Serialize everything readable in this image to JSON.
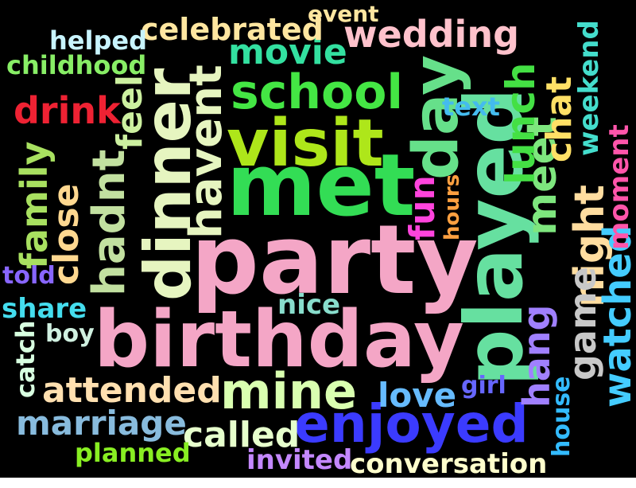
{
  "words": [
    {
      "text": "party",
      "color": "#f4a6c6",
      "rotated": false
    },
    {
      "text": "birthday",
      "color": "#f4a6c6",
      "rotated": false
    },
    {
      "text": "met",
      "color": "#33dd55",
      "rotated": false
    },
    {
      "text": "visit",
      "color": "#aee61a",
      "rotated": false
    },
    {
      "text": "played",
      "color": "#66e0a0",
      "rotated": true
    },
    {
      "text": "dinner",
      "color": "#e6f5c0",
      "rotated": true
    },
    {
      "text": "day",
      "color": "#66e08a",
      "rotated": true
    },
    {
      "text": "school",
      "color": "#44e644",
      "rotated": false
    },
    {
      "text": "enjoyed",
      "color": "#3b3bff",
      "rotated": false
    },
    {
      "text": "mine",
      "color": "#d9ffb0",
      "rotated": false
    },
    {
      "text": "havent",
      "color": "#e6f5c0",
      "rotated": true
    },
    {
      "text": "hadnt",
      "color": "#c2e0a0",
      "rotated": true
    },
    {
      "text": "meet",
      "color": "#7ee67e",
      "rotated": true
    },
    {
      "text": "night",
      "color": "#ffdda0",
      "rotated": true
    },
    {
      "text": "lunch",
      "color": "#44e044",
      "rotated": true
    },
    {
      "text": "wedding",
      "color": "#ffc2cc",
      "rotated": false
    },
    {
      "text": "movie",
      "color": "#33e0a0",
      "rotated": false
    },
    {
      "text": "celebrated",
      "color": "#ffe6a0",
      "rotated": false
    },
    {
      "text": "attended",
      "color": "#ffe0b0",
      "rotated": false
    },
    {
      "text": "marriage",
      "color": "#88bbdd",
      "rotated": false
    },
    {
      "text": "called",
      "color": "#e6ffcc",
      "rotated": false
    },
    {
      "text": "love",
      "color": "#66bbff",
      "rotated": false
    },
    {
      "text": "watched",
      "color": "#44ccff",
      "rotated": true
    },
    {
      "text": "game",
      "color": "#c8c8c8",
      "rotated": true
    },
    {
      "text": "hang",
      "color": "#a080ff",
      "rotated": true
    },
    {
      "text": "close",
      "color": "#ffd890",
      "rotated": true
    },
    {
      "text": "family",
      "color": "#a8e060",
      "rotated": true
    },
    {
      "text": "drink",
      "color": "#ee2233",
      "rotated": false
    },
    {
      "text": "feel",
      "color": "#ccf0a0",
      "rotated": true
    },
    {
      "text": "chat",
      "color": "#ffe066",
      "rotated": true
    },
    {
      "text": "weekend",
      "color": "#44ddcc",
      "rotated": true
    },
    {
      "text": "moment",
      "color": "#ff55aa",
      "rotated": true
    },
    {
      "text": "fun",
      "color": "#ff44dd",
      "rotated": true
    },
    {
      "text": "hours",
      "color": "#ffa040",
      "rotated": true
    },
    {
      "text": "text",
      "color": "#44bbee",
      "rotated": false
    },
    {
      "text": "conversation",
      "color": "#ffffcc",
      "rotated": false
    },
    {
      "text": "invited",
      "color": "#c488ff",
      "rotated": false
    },
    {
      "text": "planned",
      "color": "#88ee22",
      "rotated": false
    },
    {
      "text": "nice",
      "color": "#88ddcc",
      "rotated": false
    },
    {
      "text": "share",
      "color": "#44ddee",
      "rotated": false
    },
    {
      "text": "boy",
      "color": "#d0f0e0",
      "rotated": false
    },
    {
      "text": "catch",
      "color": "#d8ffe0",
      "rotated": true
    },
    {
      "text": "told",
      "color": "#8866ff",
      "rotated": false
    },
    {
      "text": "helped",
      "color": "#c8f4ff",
      "rotated": false
    },
    {
      "text": "childhood",
      "color": "#88ee66",
      "rotated": false
    },
    {
      "text": "event",
      "color": "#ffe6a0",
      "rotated": false
    },
    {
      "text": "girl",
      "color": "#6666ff",
      "rotated": false
    },
    {
      "text": "house",
      "color": "#33bbff",
      "rotated": true
    }
  ]
}
